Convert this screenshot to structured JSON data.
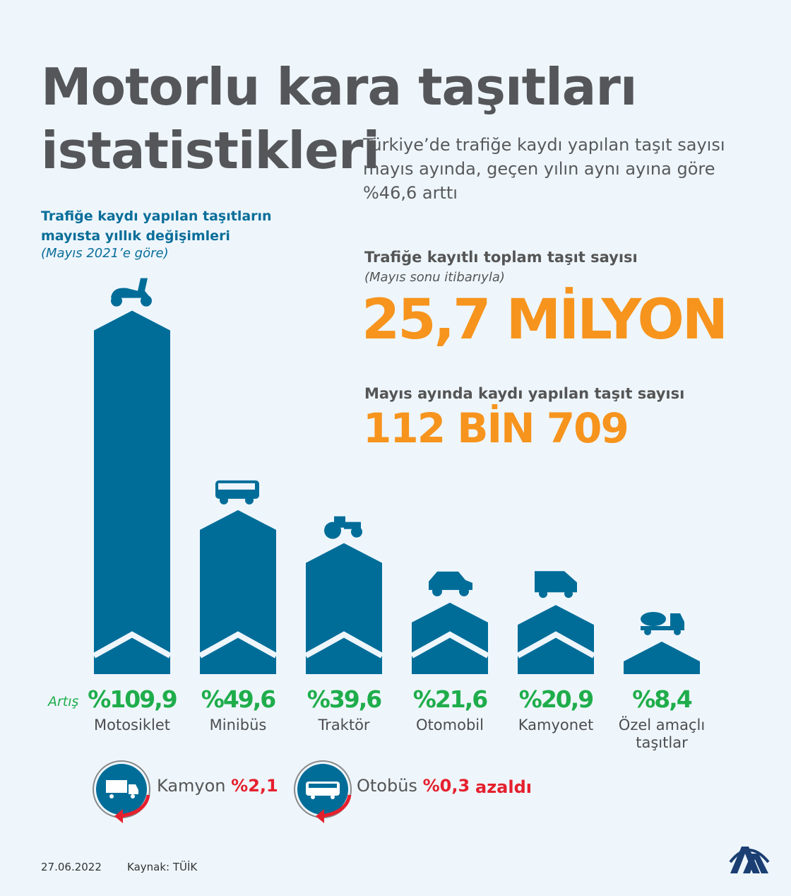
{
  "header": {
    "title_line1": "Motorlu kara taşıtları",
    "title_line2": "istatistikleri",
    "subtitle": "Türkiye’de trafiğe kaydı yapılan taşıt sayısı mayıs ayında, geçen yılın aynı ayına göre %46,6 arttı"
  },
  "left": {
    "title_line1": "Trafiğe kaydı yapılan taşıtların",
    "title_line2": "mayısta yıllık değişimleri",
    "note": "(Mayıs 2021’e göre)"
  },
  "stats": {
    "total_label": "Trafiğe kayıtlı toplam taşıt sayısı",
    "total_note": "(Mayıs sonu itibarıyla)",
    "total_value": "25,7 MİLYON",
    "month_label": "Mayıs ayında kaydı yapılan taşıt sayısı",
    "month_value": "112 BİN 709"
  },
  "colors": {
    "bar": "#006d99",
    "increase": "#1fad4b",
    "decrease": "#e5202e",
    "highlight": "#f7941d"
  },
  "chart_data": {
    "type": "bar",
    "row_label": "Artış",
    "categories": [
      "Motosiklet",
      "Minibüs",
      "Traktör",
      "Otomobil",
      "Kamyonet",
      "Özel amaçlı taşıtlar"
    ],
    "values": [
      109.9,
      49.6,
      39.6,
      21.6,
      20.9,
      8.4
    ],
    "labels": [
      "%109,9",
      "%49,6",
      "%39,6",
      "%21,6",
      "%20,9",
      "%8,4"
    ],
    "icons": [
      "motorcycle-icon",
      "minibus-icon",
      "tractor-icon",
      "car-icon",
      "van-icon",
      "concrete-mixer-icon"
    ]
  },
  "decreases": [
    {
      "name": "Kamyon",
      "value": "%2,1",
      "icon": "truck-icon"
    },
    {
      "name": "Otobüs",
      "value": "%0,3",
      "icon": "bus-icon"
    }
  ],
  "decrease_word": "azaldı",
  "footer": {
    "date": "27.06.2022",
    "source": "Kaynak: TÜİK",
    "logo": "AA"
  }
}
